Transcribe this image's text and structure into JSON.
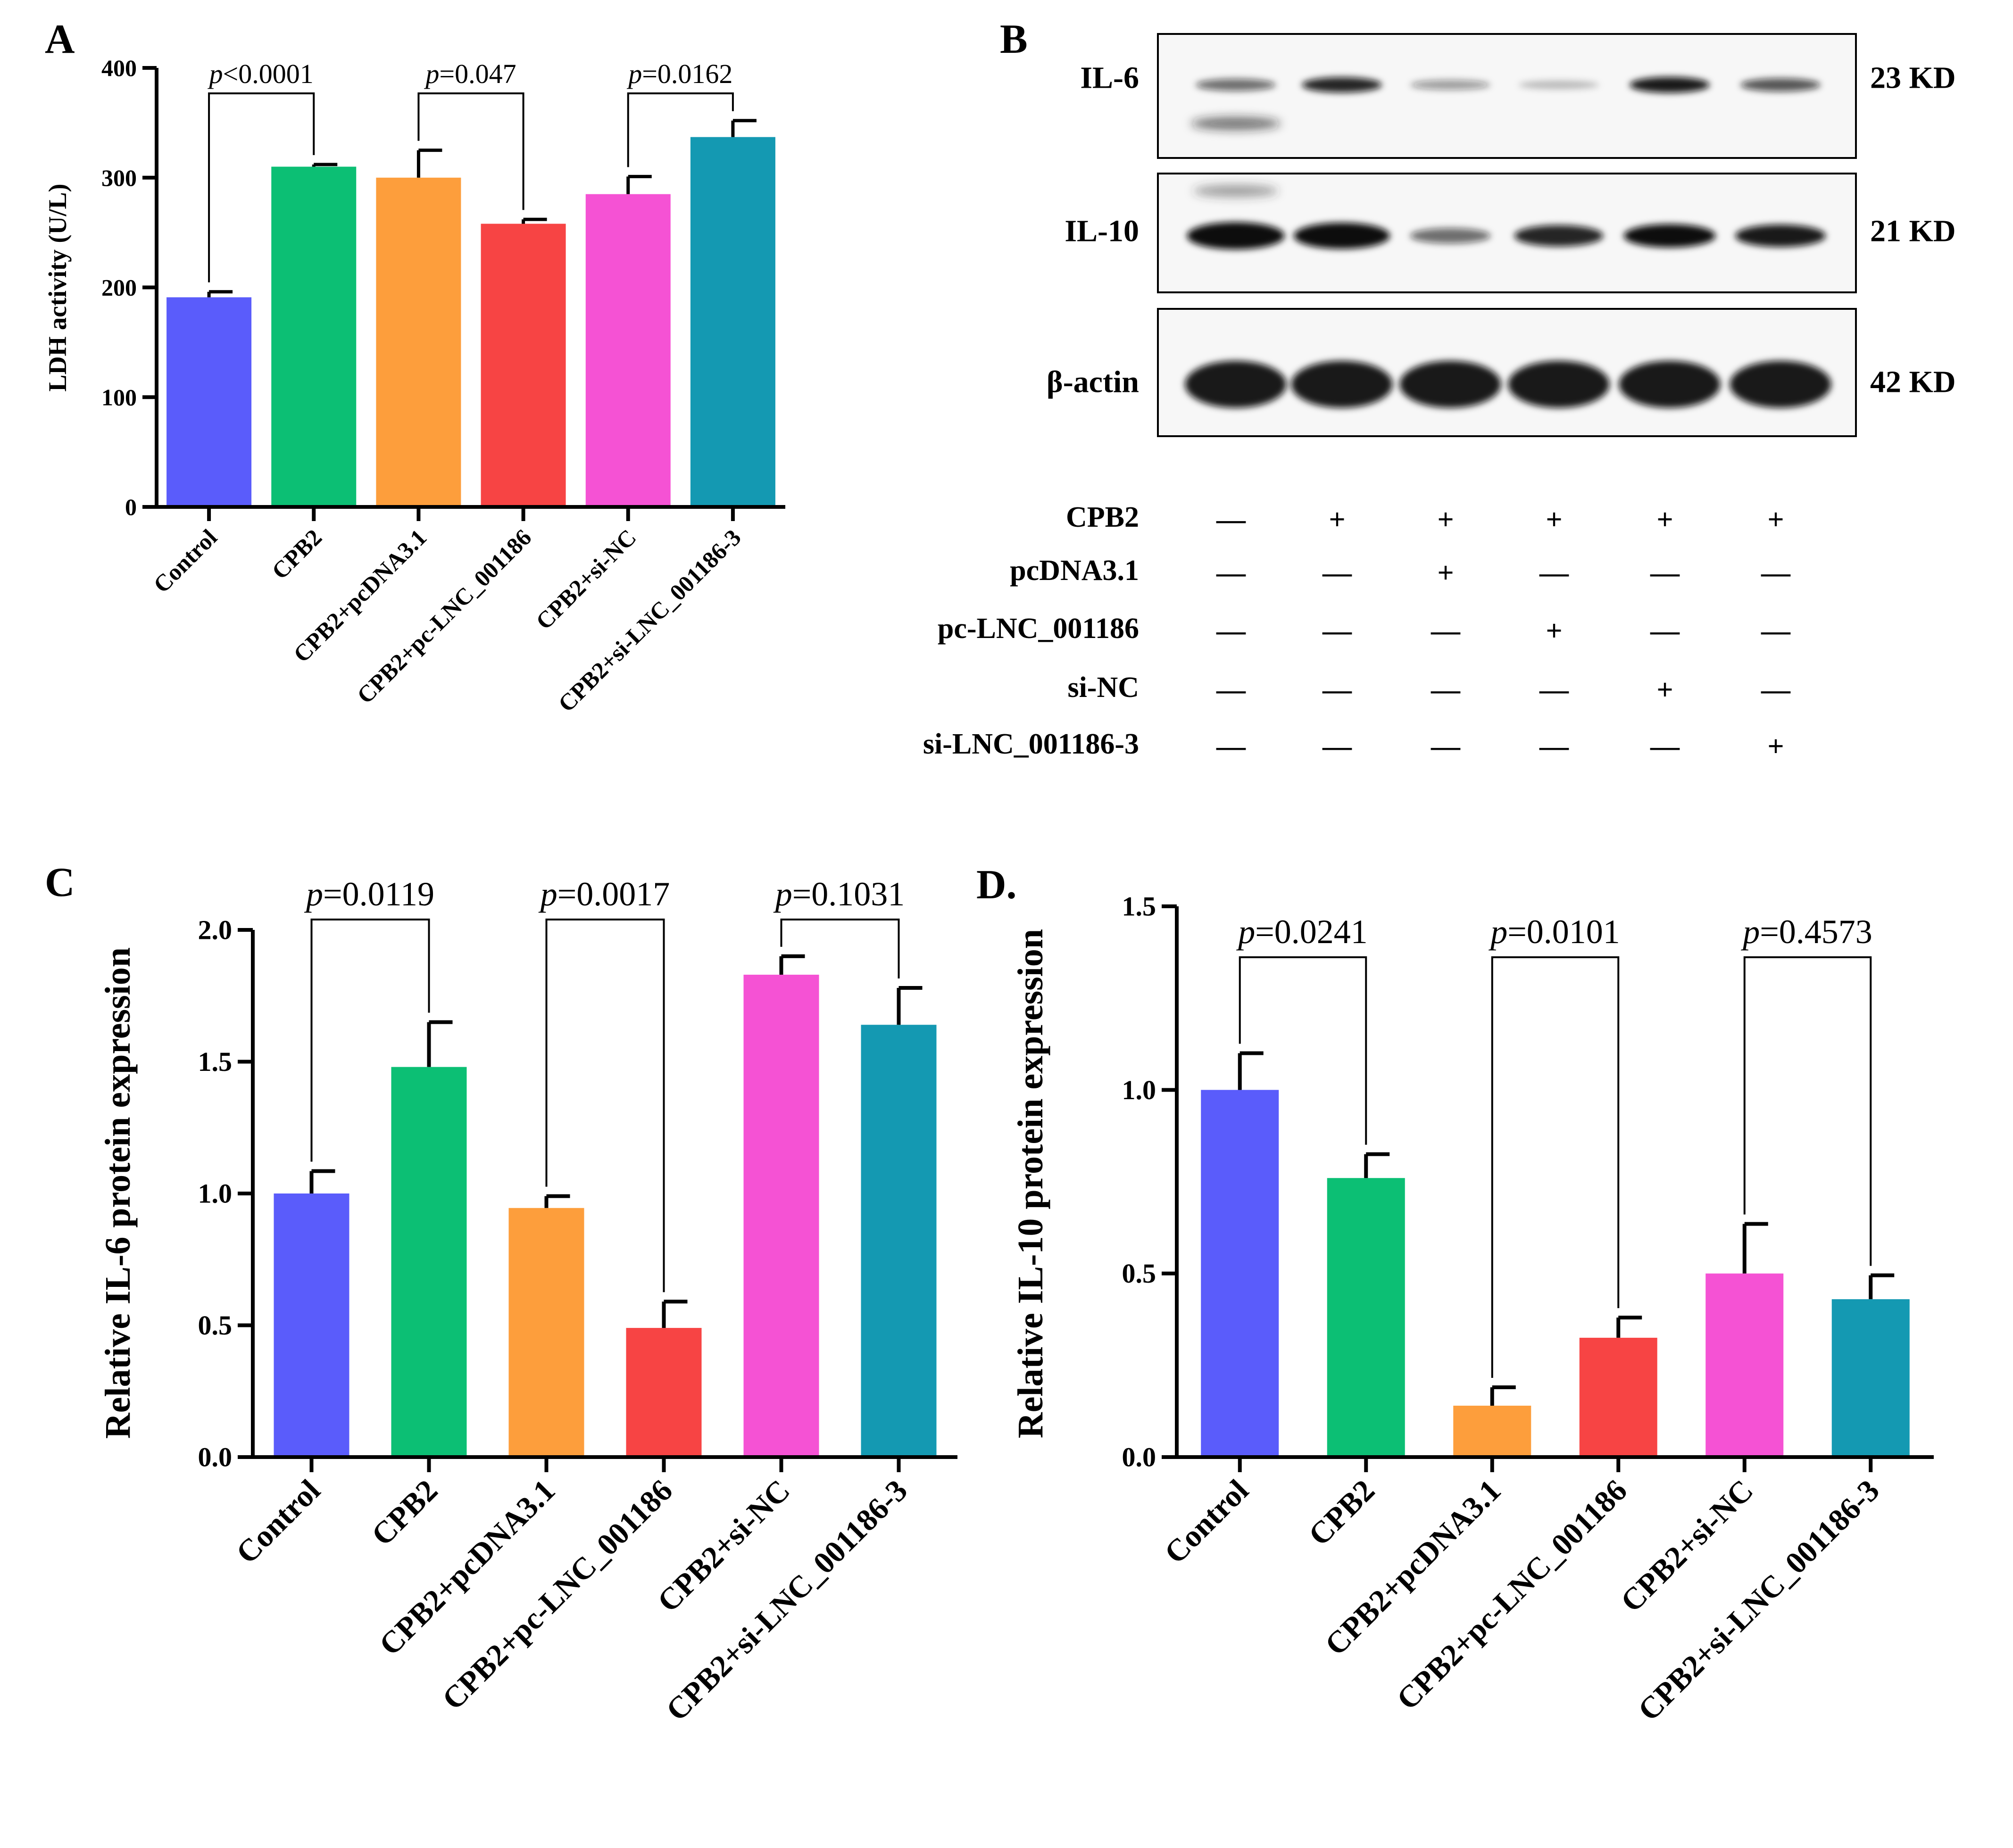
{
  "figure": {
    "palette": [
      "#5a5cfb",
      "#0cbf74",
      "#fd9e3c",
      "#f74444",
      "#f552d4",
      "#1499b2"
    ]
  },
  "chart_data": [
    {
      "panel": "A",
      "type": "bar",
      "ylabel": "LDH activity (U/L)",
      "categories": [
        "Control",
        "CPB2",
        "CPB2+pcDNA3.1",
        "CPB2+pc-LNC_001186",
        "CPB2+si-NC",
        "CPB2+si-LNC_001186-3"
      ],
      "values": [
        191,
        310,
        300,
        258,
        285,
        337
      ],
      "errors": [
        5,
        2,
        25,
        4,
        16,
        15
      ],
      "ylim": [
        0,
        400
      ],
      "ticks": [
        "0",
        "100",
        "200",
        "300",
        "400"
      ],
      "tick_values": [
        0,
        100,
        200,
        300,
        400
      ],
      "comparisons": [
        {
          "a": 0,
          "b": 1,
          "p_label": "p",
          "p_value": "<0.0001"
        },
        {
          "a": 2,
          "b": 3,
          "p_label": "p",
          "p_value": "=0.047"
        },
        {
          "a": 4,
          "b": 5,
          "p_label": "p",
          "p_value": "=0.0162"
        }
      ]
    },
    {
      "panel": "C",
      "type": "bar",
      "ylabel": "Relative IL-6 protein expression",
      "categories": [
        "Control",
        "CPB2",
        "CPB2+pcDNA3.1",
        "CPB2+pc-LNC_001186",
        "CPB2+si-NC",
        "CPB2+si-LNC_001186-3"
      ],
      "values": [
        1.0,
        1.48,
        0.945,
        0.49,
        1.83,
        1.64
      ],
      "errors": [
        0.085,
        0.17,
        0.045,
        0.1,
        0.07,
        0.14
      ],
      "ylim": [
        0,
        2.0
      ],
      "ticks": [
        "0.0",
        "0.5",
        "1.0",
        "1.5",
        "2.0"
      ],
      "tick_values": [
        0,
        0.5,
        1.0,
        1.5,
        2.0
      ],
      "comparisons": [
        {
          "a": 0,
          "b": 1,
          "p_label": "p",
          "p_value": "=0.0119"
        },
        {
          "a": 2,
          "b": 3,
          "p_label": "p",
          "p_value": "=0.0017"
        },
        {
          "a": 4,
          "b": 5,
          "p_label": "p",
          "p_value": "=0.1031"
        }
      ]
    },
    {
      "panel": "D",
      "type": "bar",
      "ylabel": "Relative IL-10 protein expression",
      "categories": [
        "Control",
        "CPB2",
        "CPB2+pcDNA3.1",
        "CPB2+pc-LNC_001186",
        "CPB2+si-NC",
        "CPB2+si-LNC_001186-3"
      ],
      "values": [
        1.0,
        0.76,
        0.14,
        0.325,
        0.5,
        0.43
      ],
      "errors": [
        0.1,
        0.065,
        0.05,
        0.055,
        0.135,
        0.065
      ],
      "ylim": [
        0,
        1.5
      ],
      "ticks": [
        "0.0",
        "0.5",
        "1.0",
        "1.5"
      ],
      "tick_values": [
        0,
        0.5,
        1.0,
        1.5
      ],
      "comparisons": [
        {
          "a": 0,
          "b": 1,
          "p_label": "p",
          "p_value": "=0.0241"
        },
        {
          "a": 2,
          "b": 3,
          "p_label": "p",
          "p_value": "=0.0101"
        },
        {
          "a": 4,
          "b": 5,
          "p_label": "p",
          "p_value": "=0.4573"
        }
      ]
    }
  ],
  "blot": {
    "panel": "B",
    "proteins": [
      {
        "name": "IL-6",
        "size": "23 KD",
        "intensity": [
          0.45,
          0.75,
          0.25,
          0.1,
          0.8,
          0.55
        ]
      },
      {
        "name": "IL-10",
        "size": "21 KD",
        "intensity": [
          0.95,
          0.9,
          0.35,
          0.65,
          0.75,
          0.7
        ]
      },
      {
        "name": "β-actin",
        "size": "42 KD",
        "intensity": [
          1,
          1,
          1,
          1,
          1,
          1
        ]
      }
    ],
    "treatments": [
      {
        "name": "CPB2",
        "marks": [
          "—",
          "+",
          "+",
          "+",
          "+",
          "+"
        ]
      },
      {
        "name": "pcDNA3.1",
        "marks": [
          "—",
          "—",
          "+",
          "—",
          "—",
          "—"
        ]
      },
      {
        "name": "pc-LNC_001186",
        "marks": [
          "—",
          "—",
          "—",
          "+",
          "—",
          "—"
        ]
      },
      {
        "name": "si-NC",
        "marks": [
          "—",
          "—",
          "—",
          "—",
          "+",
          "—"
        ]
      },
      {
        "name": "si-LNC_001186-3",
        "marks": [
          "—",
          "—",
          "—",
          "—",
          "—",
          "+"
        ]
      }
    ]
  }
}
